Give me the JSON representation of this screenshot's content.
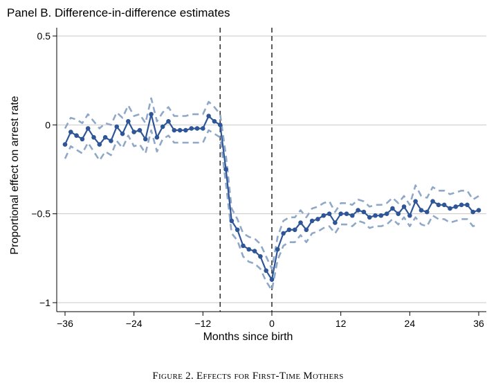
{
  "panel_title": "Panel B. Difference-in-difference estimates",
  "caption": "Figure 2. Effects for First-Time Mothers",
  "colors": {
    "series": "#2e5597",
    "ci": "#8fa8c8",
    "grid": "#c8c8c8",
    "vline": "#333333",
    "axis": "#000000"
  },
  "chart_data": {
    "type": "line",
    "title": "Panel B. Difference-in-difference estimates",
    "xlabel": "Months since birth",
    "ylabel": "Proportional effect on arrest rate",
    "xlim": [
      -36,
      36
    ],
    "ylim": [
      -1,
      0.5
    ],
    "xticks": [
      -36,
      -24,
      -12,
      0,
      12,
      24,
      36
    ],
    "xtick_labels": [
      "−36",
      "−24",
      "−12",
      "0",
      "12",
      "24",
      "36"
    ],
    "yticks": [
      0.5,
      0,
      -0.5,
      -1
    ],
    "ytick_labels": [
      "0.5",
      "0",
      "−0.5",
      "−1"
    ],
    "grid": "horizontal",
    "vertical_lines": [
      -9,
      0
    ],
    "x": [
      -36,
      -35,
      -34,
      -33,
      -32,
      -31,
      -30,
      -29,
      -28,
      -27,
      -26,
      -25,
      -24,
      -23,
      -22,
      -21,
      -20,
      -19,
      -18,
      -17,
      -16,
      -15,
      -14,
      -13,
      -12,
      -11,
      -10,
      -9,
      -8,
      -7,
      -6,
      -5,
      -4,
      -3,
      -2,
      -1,
      0,
      1,
      2,
      3,
      4,
      5,
      6,
      7,
      8,
      9,
      10,
      11,
      12,
      13,
      14,
      15,
      16,
      17,
      18,
      19,
      20,
      21,
      22,
      23,
      24,
      25,
      26,
      27,
      28,
      29,
      30,
      31,
      32,
      33,
      34,
      35,
      36
    ],
    "series": [
      {
        "name": "Estimate",
        "values": [
          -0.11,
          -0.04,
          -0.06,
          -0.08,
          -0.02,
          -0.07,
          -0.11,
          -0.07,
          -0.09,
          -0.01,
          -0.05,
          0.02,
          -0.04,
          -0.03,
          -0.08,
          0.06,
          -0.07,
          -0.01,
          0.02,
          -0.03,
          -0.03,
          -0.03,
          -0.02,
          -0.02,
          -0.02,
          0.05,
          0.02,
          0.0,
          -0.25,
          -0.54,
          -0.59,
          -0.68,
          -0.7,
          -0.71,
          -0.74,
          -0.82,
          -0.87,
          -0.7,
          -0.61,
          -0.59,
          -0.59,
          -0.55,
          -0.59,
          -0.54,
          -0.53,
          -0.51,
          -0.5,
          -0.55,
          -0.5,
          -0.5,
          -0.51,
          -0.48,
          -0.49,
          -0.52,
          -0.51,
          -0.51,
          -0.5,
          -0.47,
          -0.5,
          -0.46,
          -0.51,
          -0.43,
          -0.48,
          -0.49,
          -0.43,
          -0.45,
          -0.45,
          -0.47,
          -0.46,
          -0.45,
          -0.45,
          -0.49,
          -0.48
        ]
      },
      {
        "name": "Upper 95% CI",
        "values": [
          -0.02,
          0.04,
          0.03,
          0.01,
          0.06,
          0.02,
          -0.02,
          0.01,
          0.0,
          0.07,
          0.04,
          0.11,
          0.05,
          0.06,
          0.01,
          0.15,
          0.02,
          0.07,
          0.1,
          0.05,
          0.05,
          0.05,
          0.06,
          0.06,
          0.06,
          0.13,
          0.1,
          0.06,
          -0.17,
          -0.47,
          -0.53,
          -0.61,
          -0.63,
          -0.64,
          -0.67,
          -0.74,
          -0.81,
          -0.63,
          -0.54,
          -0.52,
          -0.52,
          -0.48,
          -0.52,
          -0.47,
          -0.46,
          -0.44,
          -0.43,
          -0.49,
          -0.44,
          -0.44,
          -0.45,
          -0.42,
          -0.43,
          -0.46,
          -0.45,
          -0.45,
          -0.44,
          -0.41,
          -0.44,
          -0.4,
          -0.45,
          -0.34,
          -0.4,
          -0.41,
          -0.35,
          -0.37,
          -0.37,
          -0.39,
          -0.38,
          -0.37,
          -0.37,
          -0.42,
          -0.4
        ]
      },
      {
        "name": "Lower 95% CI",
        "values": [
          -0.19,
          -0.12,
          -0.14,
          -0.16,
          -0.1,
          -0.15,
          -0.2,
          -0.15,
          -0.17,
          -0.09,
          -0.13,
          -0.06,
          -0.12,
          -0.11,
          -0.16,
          -0.03,
          -0.15,
          -0.08,
          -0.06,
          -0.1,
          -0.1,
          -0.1,
          -0.1,
          -0.1,
          -0.1,
          -0.03,
          -0.05,
          -0.07,
          -0.33,
          -0.61,
          -0.65,
          -0.74,
          -0.77,
          -0.78,
          -0.81,
          -0.88,
          -0.93,
          -0.76,
          -0.68,
          -0.66,
          -0.66,
          -0.62,
          -0.66,
          -0.61,
          -0.6,
          -0.58,
          -0.57,
          -0.61,
          -0.56,
          -0.56,
          -0.57,
          -0.54,
          -0.55,
          -0.58,
          -0.57,
          -0.57,
          -0.56,
          -0.53,
          -0.56,
          -0.52,
          -0.57,
          -0.52,
          -0.56,
          -0.57,
          -0.51,
          -0.53,
          -0.53,
          -0.55,
          -0.54,
          -0.53,
          -0.53,
          -0.57,
          -0.56
        ]
      }
    ]
  }
}
